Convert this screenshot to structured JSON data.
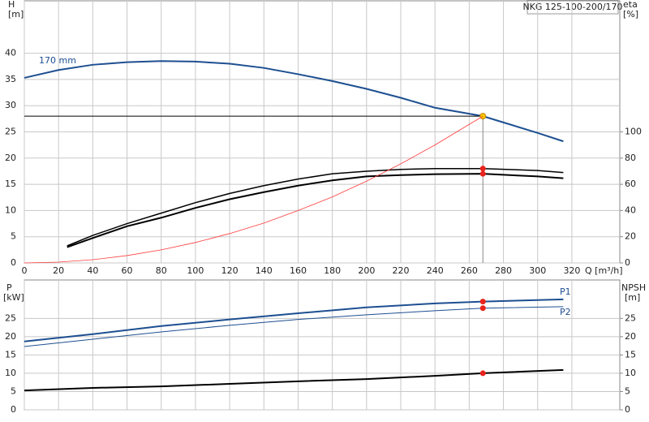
{
  "chart_data": [
    {
      "type": "line",
      "title": "NKG 125-100-200/170",
      "ylabel": "H",
      "yunit": "[m]",
      "y2label": "eta",
      "y2unit": "[%]",
      "xlabel": "Q [m³/h]",
      "xlim": [
        0,
        348
      ],
      "xticks": [
        0,
        20,
        40,
        60,
        80,
        100,
        120,
        140,
        160,
        180,
        200,
        220,
        240,
        260,
        280,
        300,
        320
      ],
      "ylim": [
        0,
        50
      ],
      "yticks": [
        0,
        5,
        10,
        15,
        20,
        25,
        30,
        35,
        40
      ],
      "y2lim": [
        0,
        200
      ],
      "y2ticks": [
        0,
        20,
        40,
        60,
        80,
        100
      ],
      "grid": true,
      "marker_x": 268,
      "series": [
        {
          "name": "170 mm",
          "color": "#1d4f91",
          "line_width": 2,
          "marker": "#f6c800",
          "guide": true,
          "x": [
            0,
            20,
            40,
            60,
            80,
            100,
            120,
            140,
            160,
            180,
            200,
            220,
            240,
            268,
            280,
            300,
            315
          ],
          "values": [
            35.3,
            36.8,
            37.8,
            38.3,
            38.5,
            38.4,
            38,
            37.2,
            36,
            34.7,
            33.2,
            31.5,
            29.6,
            28,
            26.8,
            24.8,
            23.2
          ]
        },
        {
          "color": "#000000",
          "line_width": 1.5,
          "marker": "#e8231c",
          "axis": "y2",
          "x": [
            25,
            40,
            60,
            80,
            100,
            120,
            140,
            160,
            180,
            200,
            220,
            240,
            268,
            300,
            315
          ],
          "values": [
            13,
            21,
            30,
            38,
            46,
            53,
            59,
            64,
            68,
            70,
            71.4,
            72,
            72,
            70.5,
            69
          ]
        },
        {
          "color": "#000000",
          "line_width": 2,
          "marker": "#e8231c",
          "axis": "y2",
          "x": [
            25,
            40,
            60,
            80,
            100,
            120,
            140,
            160,
            180,
            200,
            220,
            240,
            268,
            300,
            315
          ],
          "values": [
            12,
            19,
            28,
            34.5,
            42,
            48.6,
            54,
            59,
            63,
            66,
            67,
            67.7,
            68,
            66,
            64.6
          ]
        },
        {
          "color": "#ff3b3b",
          "line_width": 0.8,
          "x": [
            0,
            20,
            40,
            60,
            80,
            100,
            120,
            140,
            160,
            180,
            200,
            220,
            240,
            268
          ],
          "values": [
            0,
            0.16,
            0.62,
            1.4,
            2.5,
            3.9,
            5.6,
            7.6,
            10,
            12.6,
            15.6,
            18.9,
            22.5,
            28
          ]
        }
      ]
    },
    {
      "type": "line",
      "ylabel": "P",
      "yunit": "[kW]",
      "y2label": "NPSH",
      "y2unit": "[m]",
      "xlim": [
        0,
        348
      ],
      "xticks": [
        0,
        20,
        40,
        60,
        80,
        100,
        120,
        140,
        160,
        180,
        200,
        220,
        240,
        260,
        280,
        300,
        320
      ],
      "ylim": [
        0,
        35.5
      ],
      "yticks": [
        0,
        5,
        10,
        15,
        20,
        25
      ],
      "y2lim": [
        0,
        35.5
      ],
      "y2ticks": [
        0,
        5,
        10,
        15,
        20,
        25
      ],
      "grid": true,
      "marker_x": 268,
      "series": [
        {
          "name": "P1",
          "color": "#1d4f91",
          "line_width": 2,
          "marker": "#e8231c",
          "x": [
            0,
            40,
            80,
            120,
            160,
            200,
            240,
            268,
            315
          ],
          "values": [
            18.7,
            20.7,
            22.9,
            24.7,
            26.4,
            28,
            29.1,
            29.6,
            30.2
          ]
        },
        {
          "name": "P2",
          "color": "#1d4f91",
          "line_width": 1,
          "marker": "#e8231c",
          "x": [
            0,
            40,
            80,
            120,
            160,
            200,
            240,
            268,
            315
          ],
          "values": [
            17.3,
            19.3,
            21.3,
            23.1,
            24.7,
            26,
            27.1,
            27.8,
            28.2
          ]
        },
        {
          "color": "#000000",
          "line_width": 2,
          "marker": "#e8231c",
          "axis": "y2",
          "x": [
            0,
            40,
            80,
            120,
            160,
            200,
            240,
            268,
            315
          ],
          "values": [
            5.3,
            6,
            6.4,
            7.1,
            7.8,
            8.4,
            9.3,
            10,
            10.9
          ]
        }
      ]
    }
  ]
}
